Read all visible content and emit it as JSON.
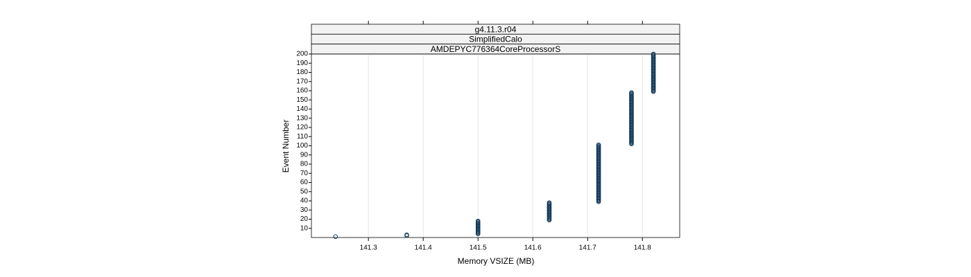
{
  "chart_data": {
    "type": "scatter",
    "strips": [
      "g4.11.3.r04",
      "SimplifiedCalo",
      "AMDEPYC776364CoreProcessorS"
    ],
    "xlabel": "Memory VSIZE (MB)",
    "ylabel": "Event Number",
    "xlim": [
      141.196,
      141.868
    ],
    "ylim": [
      0,
      200
    ],
    "xticks": [
      141.3,
      141.4,
      141.5,
      141.6,
      141.7,
      141.8
    ],
    "yticks": [
      10,
      20,
      30,
      40,
      50,
      60,
      70,
      80,
      90,
      100,
      110,
      120,
      130,
      140,
      150,
      160,
      170,
      180,
      190,
      200
    ],
    "grid": true,
    "color": "#123a5a",
    "x": [
      141.24,
      141.37,
      141.37,
      141.5,
      141.5,
      141.5,
      141.5,
      141.5,
      141.5,
      141.5,
      141.5,
      141.5,
      141.5,
      141.5,
      141.5,
      141.5,
      141.5,
      141.5,
      141.63,
      141.63,
      141.63,
      141.63,
      141.63,
      141.63,
      141.63,
      141.63,
      141.63,
      141.63,
      141.63,
      141.63,
      141.63,
      141.63,
      141.63,
      141.63,
      141.63,
      141.63,
      141.63,
      141.63,
      141.72,
      141.72,
      141.72,
      141.72,
      141.72,
      141.72,
      141.72,
      141.72,
      141.72,
      141.72,
      141.72,
      141.72,
      141.72,
      141.72,
      141.72,
      141.72,
      141.72,
      141.72,
      141.72,
      141.72,
      141.72,
      141.72,
      141.72,
      141.72,
      141.72,
      141.72,
      141.72,
      141.72,
      141.72,
      141.72,
      141.72,
      141.72,
      141.72,
      141.72,
      141.72,
      141.72,
      141.72,
      141.72,
      141.72,
      141.72,
      141.72,
      141.72,
      141.72,
      141.72,
      141.72,
      141.72,
      141.72,
      141.72,
      141.72,
      141.72,
      141.72,
      141.72,
      141.72,
      141.72,
      141.72,
      141.72,
      141.72,
      141.72,
      141.72,
      141.72,
      141.72,
      141.72,
      141.72,
      141.78,
      141.78,
      141.78,
      141.78,
      141.78,
      141.78,
      141.78,
      141.78,
      141.78,
      141.78,
      141.78,
      141.78,
      141.78,
      141.78,
      141.78,
      141.78,
      141.78,
      141.78,
      141.78,
      141.78,
      141.78,
      141.78,
      141.78,
      141.78,
      141.78,
      141.78,
      141.78,
      141.78,
      141.78,
      141.78,
      141.78,
      141.78,
      141.78,
      141.78,
      141.78,
      141.78,
      141.78,
      141.78,
      141.78,
      141.78,
      141.78,
      141.78,
      141.78,
      141.78,
      141.78,
      141.78,
      141.78,
      141.78,
      141.78,
      141.78,
      141.78,
      141.78,
      141.78,
      141.78,
      141.78,
      141.78,
      141.78,
      141.82,
      141.82,
      141.82,
      141.82,
      141.82,
      141.82,
      141.82,
      141.82,
      141.82,
      141.82,
      141.82,
      141.82,
      141.82,
      141.82,
      141.82,
      141.82,
      141.82,
      141.82,
      141.82,
      141.82,
      141.82,
      141.82,
      141.82,
      141.82,
      141.82,
      141.82,
      141.82,
      141.82,
      141.82,
      141.82,
      141.82,
      141.82,
      141.82,
      141.82,
      141.82,
      141.82,
      141.82,
      141.82,
      141.82,
      141.82,
      141.82,
      141.82
    ],
    "values": [
      1,
      2,
      3,
      4,
      5,
      6,
      7,
      8,
      9,
      10,
      11,
      12,
      13,
      14,
      15,
      16,
      17,
      18,
      19,
      20,
      21,
      22,
      23,
      24,
      25,
      26,
      27,
      28,
      29,
      30,
      31,
      32,
      33,
      34,
      35,
      36,
      37,
      38,
      39,
      40,
      41,
      42,
      43,
      44,
      45,
      46,
      47,
      48,
      49,
      50,
      51,
      52,
      53,
      54,
      55,
      56,
      57,
      58,
      59,
      60,
      61,
      62,
      63,
      64,
      65,
      66,
      67,
      68,
      69,
      70,
      71,
      72,
      73,
      74,
      75,
      76,
      77,
      78,
      79,
      80,
      81,
      82,
      83,
      84,
      85,
      86,
      87,
      88,
      89,
      90,
      91,
      92,
      93,
      94,
      95,
      96,
      97,
      98,
      99,
      100,
      101,
      102,
      103,
      104,
      105,
      106,
      107,
      108,
      109,
      110,
      111,
      112,
      113,
      114,
      115,
      116,
      117,
      118,
      119,
      120,
      121,
      122,
      123,
      124,
      125,
      126,
      127,
      128,
      129,
      130,
      131,
      132,
      133,
      134,
      135,
      136,
      137,
      138,
      139,
      140,
      141,
      142,
      143,
      144,
      145,
      146,
      147,
      148,
      149,
      150,
      151,
      152,
      153,
      154,
      155,
      156,
      157,
      158,
      159,
      160,
      161,
      162,
      163,
      164,
      165,
      166,
      167,
      168,
      169,
      170,
      171,
      172,
      173,
      174,
      175,
      176,
      177,
      178,
      179,
      180,
      181,
      182,
      183,
      184,
      185,
      186,
      187,
      188,
      189,
      190,
      191,
      192,
      193,
      194,
      195,
      196,
      197,
      198,
      199,
      200
    ]
  }
}
